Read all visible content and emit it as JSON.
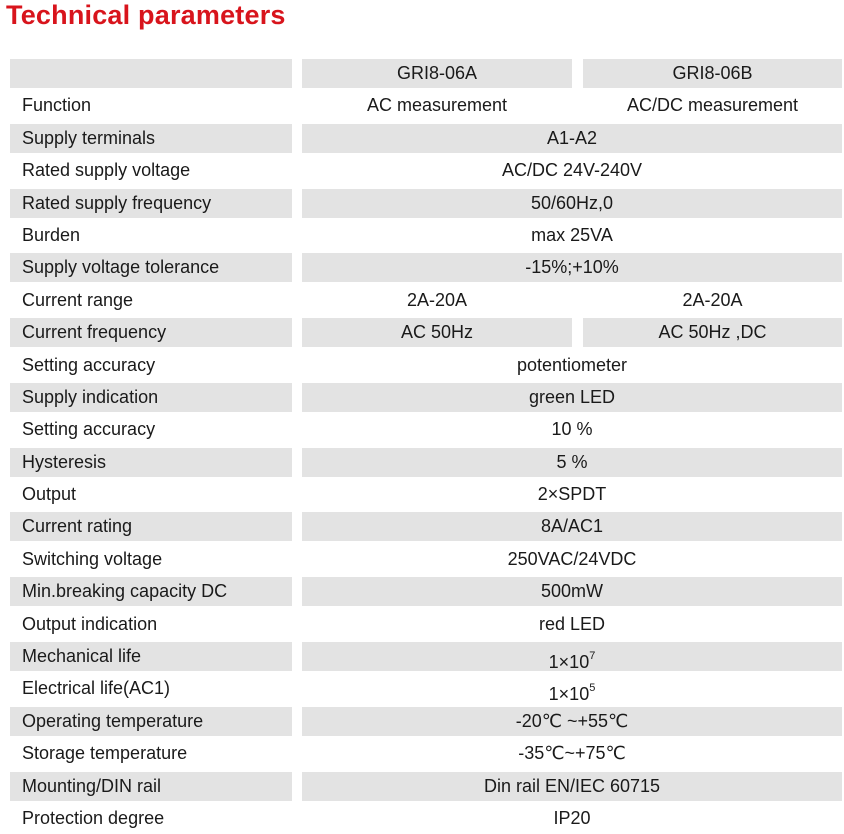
{
  "title": "Technical parameters",
  "header": {
    "col_a": "GRI8-06A",
    "col_b": "GRI8-06B"
  },
  "rows": [
    {
      "label": "Function",
      "a": "AC measurement",
      "b": "AC/DC measurement"
    },
    {
      "label": "Supply terminals",
      "value": "A1-A2"
    },
    {
      "label": "Rated supply voltage",
      "value": "AC/DC 24V-240V"
    },
    {
      "label": "Rated supply frequency",
      "value": "50/60Hz,0"
    },
    {
      "label": "Burden",
      "value": "max 25VA"
    },
    {
      "label": "Supply voltage tolerance",
      "value": "-15%;+10%"
    },
    {
      "label": "Current range",
      "a": "2A-20A",
      "b": "2A-20A"
    },
    {
      "label": "Current frequency",
      "a": "AC 50Hz",
      "b": "AC 50Hz ,DC"
    },
    {
      "label": "Setting accuracy",
      "value": "potentiometer"
    },
    {
      "label": "Supply indication",
      "value": "green LED"
    },
    {
      "label": "Setting accuracy",
      "value": "10 %"
    },
    {
      "label": "Hysteresis",
      "value": "5 %"
    },
    {
      "label": "Output",
      "value": "2×SPDT"
    },
    {
      "label": "Current rating",
      "value": "8A/AC1"
    },
    {
      "label": "Switching voltage",
      "value": "250VAC/24VDC"
    },
    {
      "label": "Min.breaking capacity DC",
      "value": "500mW"
    },
    {
      "label": "Output indication",
      "value": "red LED"
    },
    {
      "label": "Mechanical life",
      "value": "1×10",
      "sup": "7"
    },
    {
      "label": "Electrical life(AC1)",
      "value": "1×10",
      "sup": "5"
    },
    {
      "label": "Operating temperature",
      "value": "-20℃ ~+55℃"
    },
    {
      "label": "Storage temperature",
      "value": "-35℃~+75℃"
    },
    {
      "label": "Mounting/DIN rail",
      "value": "Din rail EN/IEC 60715"
    },
    {
      "label": "Protection degree",
      "value": "IP20"
    }
  ],
  "colors": {
    "title": "#d8141c",
    "shade": "#e3e3e3"
  }
}
